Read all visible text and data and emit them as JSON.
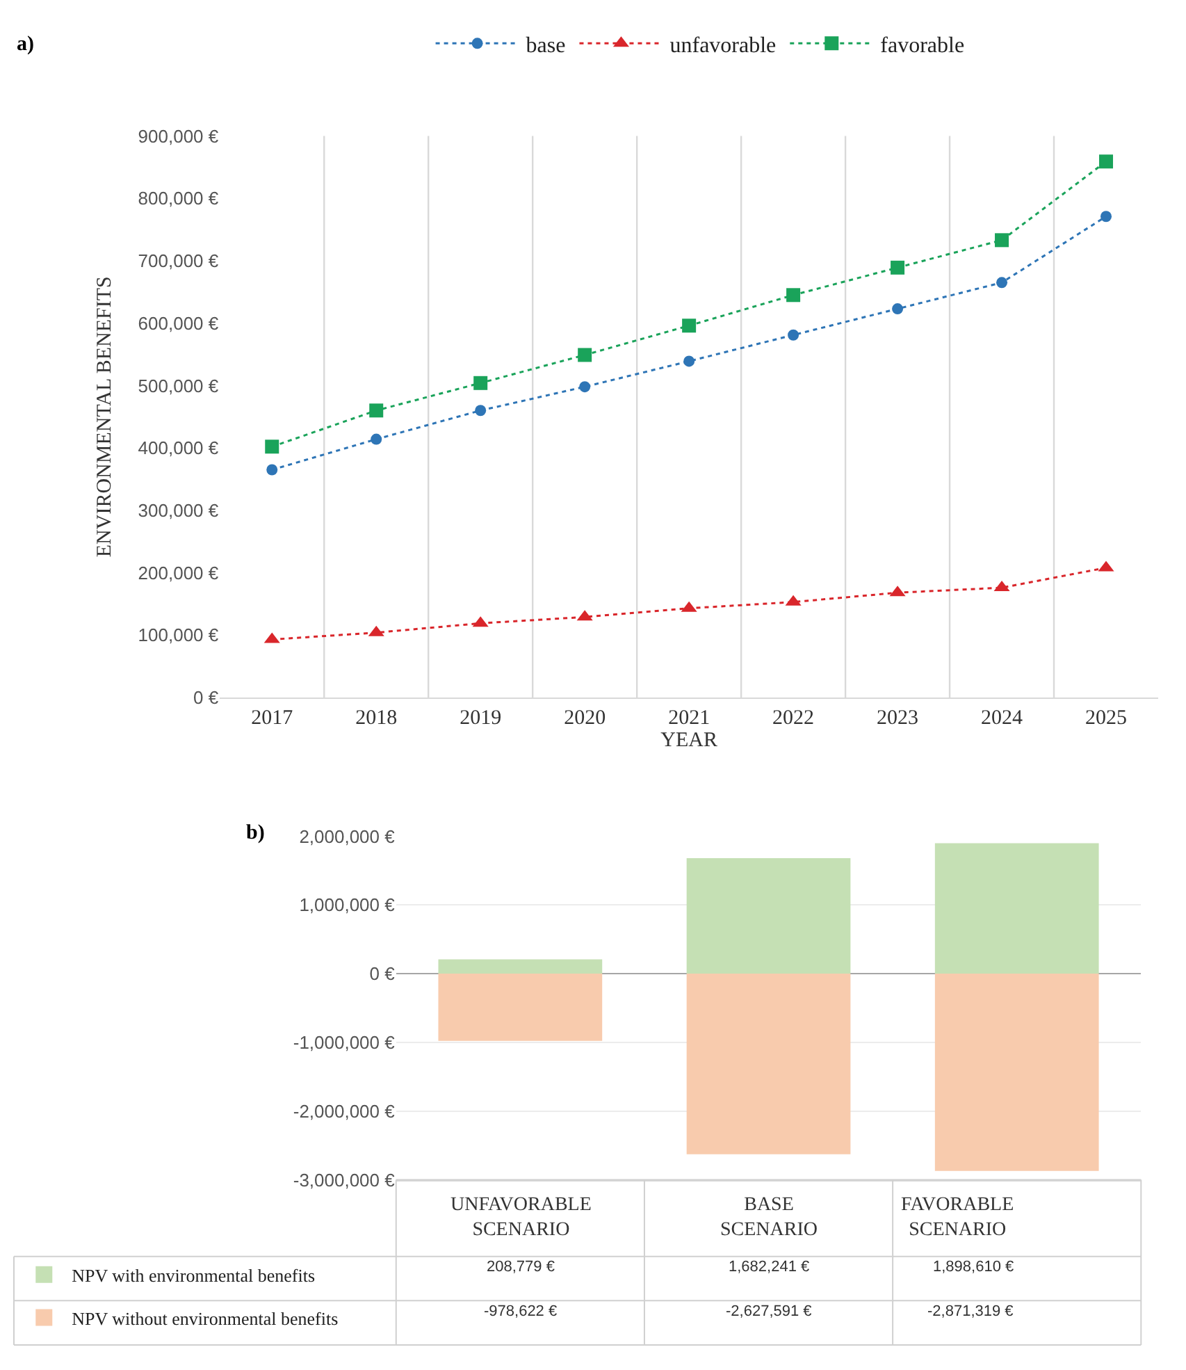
{
  "chart_data": [
    {
      "type": "line",
      "title": "a)",
      "xlabel": "YEAR",
      "ylabel": "ENVIRONMENTAL BENEFITS",
      "categories": [
        "2017",
        "2018",
        "2019",
        "2020",
        "2021",
        "2022",
        "2023",
        "2024",
        "2025"
      ],
      "series": [
        {
          "name": "base",
          "color": "#2e75b6",
          "marker": "circle",
          "values": [
            365000,
            414000,
            460000,
            498000,
            539000,
            581000,
            623000,
            665000,
            771000
          ]
        },
        {
          "name": "unfavorable",
          "color": "#d9262b",
          "marker": "triangle",
          "values": [
            93000,
            104000,
            119000,
            129000,
            143000,
            153000,
            168000,
            176000,
            208000
          ]
        },
        {
          "name": "favorable",
          "color": "#1aa35a",
          "marker": "square",
          "values": [
            402000,
            460000,
            504000,
            549000,
            596000,
            645000,
            689000,
            733000,
            859000
          ]
        }
      ],
      "line_style": "dotted",
      "ylim": [
        0,
        900000
      ],
      "yticks": [
        {
          "value": 0,
          "label": "0 €"
        },
        {
          "value": 100000,
          "label": "100,000 €"
        },
        {
          "value": 200000,
          "label": "200,000 €"
        },
        {
          "value": 300000,
          "label": "300,000 €"
        },
        {
          "value": 400000,
          "label": "400,000 €"
        },
        {
          "value": 500000,
          "label": "500,000 €"
        },
        {
          "value": 600000,
          "label": "600,000 €"
        },
        {
          "value": 700000,
          "label": "700,000 €"
        },
        {
          "value": 800000,
          "label": "800,000 €"
        },
        {
          "value": 900000,
          "label": "900,000 €"
        }
      ],
      "grid": "x",
      "legend": "top"
    },
    {
      "type": "bar",
      "title": "b)",
      "categories": [
        "UNFAVORABLE SCENARIO",
        "BASE SCENARIO",
        "FAVORABLE SCENARIO"
      ],
      "series": [
        {
          "name": "NPV with environmental benefits",
          "color": "#c5e0b4",
          "values": [
            208779,
            1682241,
            1898610
          ],
          "value_labels": [
            "208,779 €",
            "1,682,241 €",
            "1,898,610 €"
          ]
        },
        {
          "name": "NPV without environmental benefits",
          "color": "#f8cbad",
          "values": [
            -978622,
            -2627591,
            -2871319
          ],
          "value_labels": [
            "-978,622 €",
            "-2,627,591 €",
            "-2,871,319 €"
          ]
        }
      ],
      "ylim": [
        -3000000,
        2000000
      ],
      "yticks": [
        {
          "value": -3000000,
          "label": "-3,000,000 €"
        },
        {
          "value": -2000000,
          "label": "-2,000,000 €"
        },
        {
          "value": -1000000,
          "label": "-1,000,000 €"
        },
        {
          "value": 0,
          "label": "0 €"
        },
        {
          "value": 1000000,
          "label": "1,000,000 €"
        },
        {
          "value": 2000000,
          "label": "2,000,000 €"
        }
      ],
      "grid": "y",
      "stacked": true,
      "legend": "bottom left"
    }
  ]
}
